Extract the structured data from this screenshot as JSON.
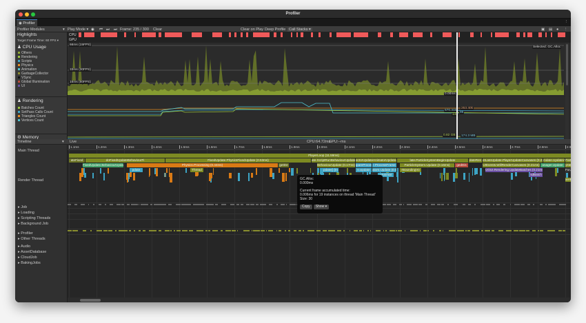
{
  "window": {
    "title": "Profiler",
    "tab": "Profiler"
  },
  "toolbar": {
    "modules": "Profiler Modules",
    "play_mode": "Play Mode",
    "frame": "Frame: 235 / 300",
    "clear": "Clear",
    "clear_on_play": "Clear on Play",
    "deep_profile": "Deep Profile",
    "call_stacks": "Call Stacks"
  },
  "highlights": {
    "title": "Highlights",
    "target": "Target Frame Time: 60 FPS",
    "cpu": "CPU",
    "gpu": "GPU"
  },
  "cpu_module": {
    "title": "CPU Usage",
    "legend": [
      {
        "label": "Others",
        "color": "#8fa833"
      },
      {
        "label": "Rendering",
        "color": "#9bc53d"
      },
      {
        "label": "Scripts",
        "color": "#3da4c4"
      },
      {
        "label": "Physics",
        "color": "#e38d22"
      },
      {
        "label": "Animation",
        "color": "#4fc3d1"
      },
      {
        "label": "GarbageCollector",
        "color": "#8b8a2e"
      },
      {
        "label": "VSync",
        "color": "#111111"
      },
      {
        "label": "Global Illumination",
        "color": "#b94a3a"
      },
      {
        "label": "UI",
        "color": "#6a4fa3"
      }
    ],
    "lines": [
      "66ms (15FPS)",
      "33ms (30FPS)",
      "16ms (60FPS)"
    ],
    "selected": "Selected: GC.Alloc",
    "value": "0.00ms"
  },
  "rendering_module": {
    "title": "Rendering",
    "legend": [
      {
        "label": "Batches Count",
        "color": "#9bc53d"
      },
      {
        "label": "SetPass Calls Count",
        "color": "#3da4c4"
      },
      {
        "label": "Triangles Count",
        "color": "#e38d22"
      },
      {
        "label": "Vertices Count",
        "color": "#4fc3d1"
      }
    ],
    "values": [
      "570.31k",
      "253.40k",
      "95",
      "143"
    ]
  },
  "memory_module": {
    "title": "Memory",
    "values": [
      "0.82 GB",
      "174.3 MB"
    ]
  },
  "timeline": {
    "view": "Timeline",
    "live": "Live",
    "cpu": "CPU:64.72ms",
    "gpu": "GPU:--ms",
    "ticks": [
      "1.1ms",
      "1.2ms",
      "1.3ms",
      "1.4ms",
      "1.5ms",
      "1.6ms",
      "1.7ms",
      "1.8ms",
      "1.9ms",
      "2.0ms",
      "2.1ms",
      "2.2ms",
      "2.3ms",
      "2.4ms",
      "2.5ms",
      "2.6ms",
      "2.7ms",
      "2.8ms",
      "2.9ms"
    ],
    "threads": [
      "Main Thread",
      "Render Thread"
    ],
    "groups": [
      "Job",
      "Loading",
      "Scripting Threads",
      "Background Job",
      "Profiler",
      "Other Threads",
      "Audio",
      "AssetDatabase",
      "CloudJob",
      "BakingJobs"
    ],
    "blocks": [
      {
        "row": 0,
        "start": 1.1,
        "end": 2.95,
        "label": "PlayerLoop (11.59ms)",
        "color": "#7d8a22"
      },
      {
        "row": 1,
        "start": 1.1,
        "end": 1.16,
        "label": "ateFixed",
        "color": "#6c7424"
      },
      {
        "row": 1,
        "start": 1.16,
        "end": 1.45,
        "label": "doFixedUpdateBehaviourFi",
        "color": "#7d8a22"
      },
      {
        "row": 1,
        "start": 1.45,
        "end": 1.98,
        "label": "FixedUpdate.PhysicsFixedUpdate (0.53ms)",
        "color": "#7d8a22"
      },
      {
        "row": 1,
        "start": 1.98,
        "end": 2.14,
        "label": "ate.ScriptRunBehaviourUpdate (0.18ms)",
        "color": "#7d8a22"
      },
      {
        "row": 1,
        "start": 2.14,
        "end": 2.29,
        "label": "ectorUpdateAnimatorUpdateAnim",
        "color": "#7d8a22"
      },
      {
        "row": 1,
        "start": 2.29,
        "end": 2.55,
        "label": "late.ParticleSystemBeginUpdate",
        "color": "#7d8a22"
      },
      {
        "row": 1,
        "start": 2.55,
        "end": 2.6,
        "label": "dateRen",
        "color": "#7d8a22"
      },
      {
        "row": 1,
        "start": 2.6,
        "end": 2.82,
        "label": "etLateUpdate.PlayerUpdateCanvases (0.22ms)",
        "color": "#7d8a22"
      },
      {
        "row": 1,
        "start": 2.82,
        "end": 2.9,
        "label": "mdate.UpdateAud",
        "color": "#7d8a22"
      },
      {
        "row": 1,
        "start": 2.9,
        "end": 2.95,
        "label": "ParticleSystemEnd",
        "color": "#7d8a22"
      },
      {
        "row": 2,
        "start": 1.15,
        "end": 1.3,
        "label": "FixedUpdate.BehaviourUpdate",
        "color": "#43a36b"
      },
      {
        "row": 2,
        "start": 1.31,
        "end": 1.86,
        "label": "Physics.Processing (0.44ms)",
        "color": "#d97a15"
      },
      {
        "row": 2,
        "start": 1.86,
        "end": 1.9,
        "label": "getDe",
        "color": "#6c7424"
      },
      {
        "row": 2,
        "start": 2.0,
        "end": 2.14,
        "label": "BehaviourUpdate (0.17ms)",
        "color": "#7d8a22"
      },
      {
        "row": 2,
        "start": 2.14,
        "end": 2.2,
        "label": "ipareProcessFrame",
        "color": "#3da4c4"
      },
      {
        "row": 2,
        "start": 2.2,
        "end": 2.29,
        "label": "r.ProcessFrame",
        "color": "#3da4c4"
      },
      {
        "row": 2,
        "start": 2.3,
        "end": 2.5,
        "label": "ParticleSystem.Update (0.16ms)",
        "color": "#7d8a22"
      },
      {
        "row": 2,
        "start": 2.5,
        "end": 2.55,
        "label": "gedDis",
        "color": "#b94a3a"
      },
      {
        "row": 2,
        "start": 2.6,
        "end": 2.81,
        "label": "UIEvents.WillRenderCanvases (0.21ms)",
        "color": "#7d8a22"
      },
      {
        "row": 2,
        "start": 2.81,
        "end": 2.9,
        "label": "anager.Update",
        "color": "#43a36b"
      },
      {
        "row": 2,
        "start": 2.9,
        "end": 2.95,
        "label": "ystem.EndUpdateAll",
        "color": "#7d8a22"
      },
      {
        "row": 3,
        "start": 1.32,
        "end": 1.37,
        "label": "pdate",
        "color": "#3da4c4"
      },
      {
        "row": 3,
        "start": 1.54,
        "end": 1.59,
        "label": "Thread",
        "color": "#7d8a22"
      },
      {
        "row": 3,
        "start": 2.02,
        "end": 2.08,
        "label": "pdate() [In",
        "color": "#3da4c4"
      },
      {
        "row": 3,
        "start": 2.14,
        "end": 2.2,
        "label": "s.Update",
        "color": "#3da4c4"
      },
      {
        "row": 3,
        "start": 2.2,
        "end": 2.29,
        "label": "ators.Update (0.0",
        "color": "#3da4c4"
      },
      {
        "row": 3,
        "start": 2.3,
        "end": 2.38,
        "label": "rBoundingVo",
        "color": "#7d8a22"
      },
      {
        "row": 3,
        "start": 2.61,
        "end": 2.82,
        "label": "UGUI.Rendering.UpdateBatches (0.21ms)",
        "color": "#6a4fa3"
      },
      {
        "row": 3,
        "start": 2.9,
        "end": 2.95,
        "label": "ForJobGroupID (0.2",
        "color": "#333333"
      },
      {
        "row": 4,
        "start": 2.22,
        "end": 2.28,
        "label": "uAnimat",
        "color": "#3da4c4"
      },
      {
        "row": 4,
        "start": 2.77,
        "end": 2.82,
        "label": "sdBatch",
        "color": "#6a4fa3"
      },
      {
        "row": 5,
        "start": 2.9,
        "end": 2.95,
        "label": "areBatches",
        "color": "#7d8a22"
      }
    ]
  },
  "tooltip": {
    "name": "GC.Alloc",
    "time": "0.000ms",
    "heading": "Current frame accumulated time:",
    "detail": "0.006ms for 19 instances on thread 'Main Thread'",
    "size": "Size: 30",
    "copy": "Copy",
    "show": "Show"
  },
  "colors": {
    "highlight": "#f05a5a",
    "accent": "#3a79bb"
  }
}
